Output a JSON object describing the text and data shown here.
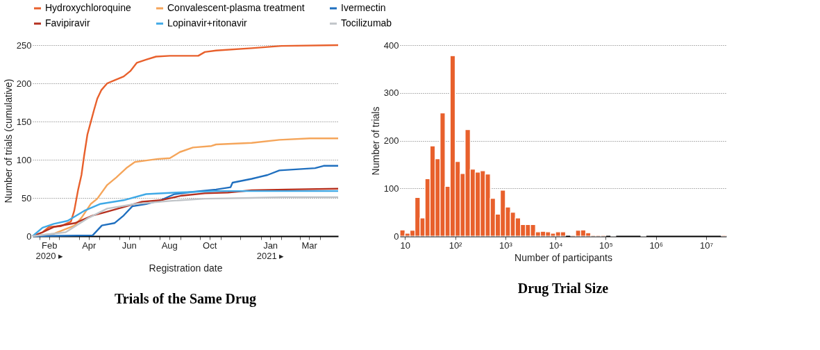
{
  "chart_data": [
    {
      "type": "line",
      "title": "Trials of the Same Drug",
      "xlabel": "Registration date",
      "ylabel": "Number of trials (cumulative)",
      "legend": "top",
      "grid": "y",
      "xlim": [
        "2020-01-21",
        "2021-04-28"
      ],
      "ylim": [
        0,
        250
      ],
      "yticks": [
        0,
        50,
        100,
        150,
        200,
        250
      ],
      "xticks": [
        {
          "value": "2020-02-01",
          "label": null
        },
        {
          "value": "2020-02-15",
          "label": "Feb\n2020 ▸"
        },
        {
          "value": "2020-03-01",
          "label": null
        },
        {
          "value": "2020-04-01",
          "label": null
        },
        {
          "value": "2020-04-15",
          "label": "Apr"
        },
        {
          "value": "2020-05-01",
          "label": null
        },
        {
          "value": "2020-06-01",
          "label": null
        },
        {
          "value": "2020-06-15",
          "label": "Jun"
        },
        {
          "value": "2020-07-01",
          "label": null
        },
        {
          "value": "2020-08-01",
          "label": null
        },
        {
          "value": "2020-08-15",
          "label": "Aug"
        },
        {
          "value": "2020-09-01",
          "label": null
        },
        {
          "value": "2020-10-01",
          "label": null
        },
        {
          "value": "2020-10-15",
          "label": "Oct"
        },
        {
          "value": "2020-11-01",
          "label": null
        },
        {
          "value": "2020-12-01",
          "label": null
        },
        {
          "value": "2021-01-01",
          "label": null
        },
        {
          "value": "2021-01-15",
          "label": "Jan\n2021 ▸"
        },
        {
          "value": "2021-02-01",
          "label": null
        },
        {
          "value": "2021-03-01",
          "label": null
        },
        {
          "value": "2021-03-15",
          "label": "Mar"
        },
        {
          "value": "2021-04-01",
          "label": null
        }
      ],
      "series": [
        {
          "name": "Hydroxychloroquine",
          "color": "#e8602c",
          "x": [
            "2020-01-21",
            "2020-02-05",
            "2020-02-15",
            "2020-03-04",
            "2020-03-19",
            "2020-03-24",
            "2020-03-30",
            "2020-04-04",
            "2020-04-08",
            "2020-04-13",
            "2020-04-18",
            "2020-04-23",
            "2020-04-28",
            "2020-05-04",
            "2020-05-13",
            "2020-05-24",
            "2020-06-07",
            "2020-06-17",
            "2020-06-27",
            "2020-07-11",
            "2020-07-26",
            "2020-08-16",
            "2020-09-28",
            "2020-10-08",
            "2020-10-25",
            "2020-12-18",
            "2021-02-01",
            "2021-04-28"
          ],
          "values": [
            0,
            5,
            12,
            13,
            19,
            33,
            61,
            80,
            105,
            133,
            149,
            165,
            180,
            191,
            200,
            204,
            209,
            216,
            227,
            231,
            235,
            236,
            236,
            241,
            243,
            246,
            249,
            250
          ]
        },
        {
          "name": "Convalescent-plasma treatment",
          "color": "#f5a55a",
          "x": [
            "2020-01-21",
            "2020-02-22",
            "2020-03-25",
            "2020-04-04",
            "2020-04-18",
            "2020-04-28",
            "2020-05-13",
            "2020-05-27",
            "2020-06-11",
            "2020-06-24",
            "2020-07-11",
            "2020-07-29",
            "2020-08-16",
            "2020-08-31",
            "2020-09-20",
            "2020-10-18",
            "2020-10-25",
            "2020-12-18",
            "2021-01-29",
            "2021-03-16",
            "2021-04-28"
          ],
          "values": [
            0,
            3,
            14,
            24,
            42,
            49,
            67,
            77,
            89,
            97,
            99,
            101,
            102,
            110,
            116,
            118,
            120,
            122,
            126,
            128,
            128
          ]
        },
        {
          "name": "Ivermectin",
          "color": "#1f6fbf",
          "x": [
            "2020-01-21",
            "2020-04-21",
            "2020-05-05",
            "2020-05-24",
            "2020-06-07",
            "2020-06-20",
            "2020-07-11",
            "2020-08-02",
            "2020-08-23",
            "2020-09-20",
            "2020-10-25",
            "2020-11-16",
            "2020-11-19",
            "2020-12-18",
            "2021-01-11",
            "2021-01-29",
            "2021-03-24",
            "2021-04-06",
            "2021-04-28"
          ],
          "values": [
            0,
            1,
            14,
            17,
            27,
            39,
            42,
            47,
            55,
            58,
            61,
            64,
            70,
            75,
            80,
            86,
            89,
            92,
            92
          ]
        },
        {
          "name": "Favipiravir",
          "color": "#b5301f",
          "x": [
            "2020-01-21",
            "2020-02-05",
            "2020-02-22",
            "2020-03-25",
            "2020-04-21",
            "2020-05-09",
            "2020-06-07",
            "2020-07-05",
            "2020-08-02",
            "2020-09-03",
            "2020-10-08",
            "2020-11-12",
            "2020-12-18",
            "2021-02-08",
            "2021-04-28"
          ],
          "values": [
            0,
            5,
            12,
            17,
            27,
            31,
            38,
            45,
            47,
            53,
            56,
            57,
            60,
            61,
            62
          ]
        },
        {
          "name": "Lopinavir+ritonavir",
          "color": "#3fa9e6",
          "x": [
            "2020-01-21",
            "2020-02-05",
            "2020-02-22",
            "2020-03-14",
            "2020-04-08",
            "2020-05-02",
            "2020-06-07",
            "2020-07-11",
            "2020-08-26",
            "2020-10-25",
            "2021-04-28"
          ],
          "values": [
            0,
            11,
            16,
            20,
            33,
            42,
            47,
            55,
            57,
            59,
            59
          ]
        },
        {
          "name": "Tocilizumab",
          "color": "#c0c4c8",
          "x": [
            "2020-01-21",
            "2020-03-11",
            "2020-04-15",
            "2020-05-13",
            "2020-06-24",
            "2020-08-16",
            "2020-10-08",
            "2020-12-18",
            "2021-02-01",
            "2021-04-28"
          ],
          "values": [
            0,
            5,
            24,
            36,
            42,
            46,
            49,
            50,
            51,
            51
          ]
        }
      ]
    },
    {
      "type": "histogram",
      "title": "Drug Trial Size",
      "xlabel": "Number of participants",
      "ylabel": "Number of trials",
      "log": "x",
      "grid": "y",
      "color": "#e8602c",
      "xlim": [
        7.94,
        25100000
      ],
      "xticks": [
        10,
        {
          "value": 100,
          "label": "10²"
        },
        {
          "value": 1000,
          "label": "10³"
        },
        {
          "value": 10000,
          "label": "10⁴"
        },
        {
          "value": 100000,
          "label": "10⁵"
        },
        {
          "value": 1000000,
          "label": "10⁶"
        },
        {
          "value": 10000000,
          "label": "10⁷"
        }
      ],
      "ylim": [
        0,
        400
      ],
      "yticks": [
        0,
        100,
        200,
        300,
        400
      ],
      "bins": [
        7.94,
        10,
        12.6,
        15.8,
        20,
        25.1,
        31.6,
        39.8,
        50.1,
        63.1,
        79.4,
        100,
        126,
        158,
        200,
        251,
        316,
        398,
        501,
        631,
        794,
        1000,
        1260,
        1580,
        2000,
        2510,
        3160,
        3980,
        5010,
        6310,
        7940,
        10000,
        12600,
        15800,
        20000,
        25100,
        31600,
        39800,
        50100,
        63100,
        79400,
        100000,
        126000,
        158000,
        200000,
        251000,
        316000,
        398000,
        501000,
        631000,
        794000,
        1000000,
        1260000,
        1580000,
        2000000,
        2510000,
        3160000,
        3980000,
        5010000,
        6310000,
        7940000,
        10000000,
        12600000,
        15800000,
        20000000,
        25100000
      ],
      "values": [
        13,
        6,
        12,
        81,
        38,
        120,
        189,
        162,
        258,
        104,
        378,
        156,
        131,
        223,
        140,
        134,
        137,
        130,
        79,
        46,
        96,
        61,
        50,
        38,
        24,
        24,
        24,
        9,
        10,
        9,
        6,
        9,
        9,
        0,
        2,
        12,
        13,
        7,
        2,
        2,
        2,
        0,
        1,
        0,
        0,
        0,
        0,
        0,
        1,
        0,
        0,
        0,
        0,
        0,
        0,
        0,
        0,
        0,
        0,
        0,
        0,
        0,
        0,
        0,
        2
      ]
    }
  ]
}
